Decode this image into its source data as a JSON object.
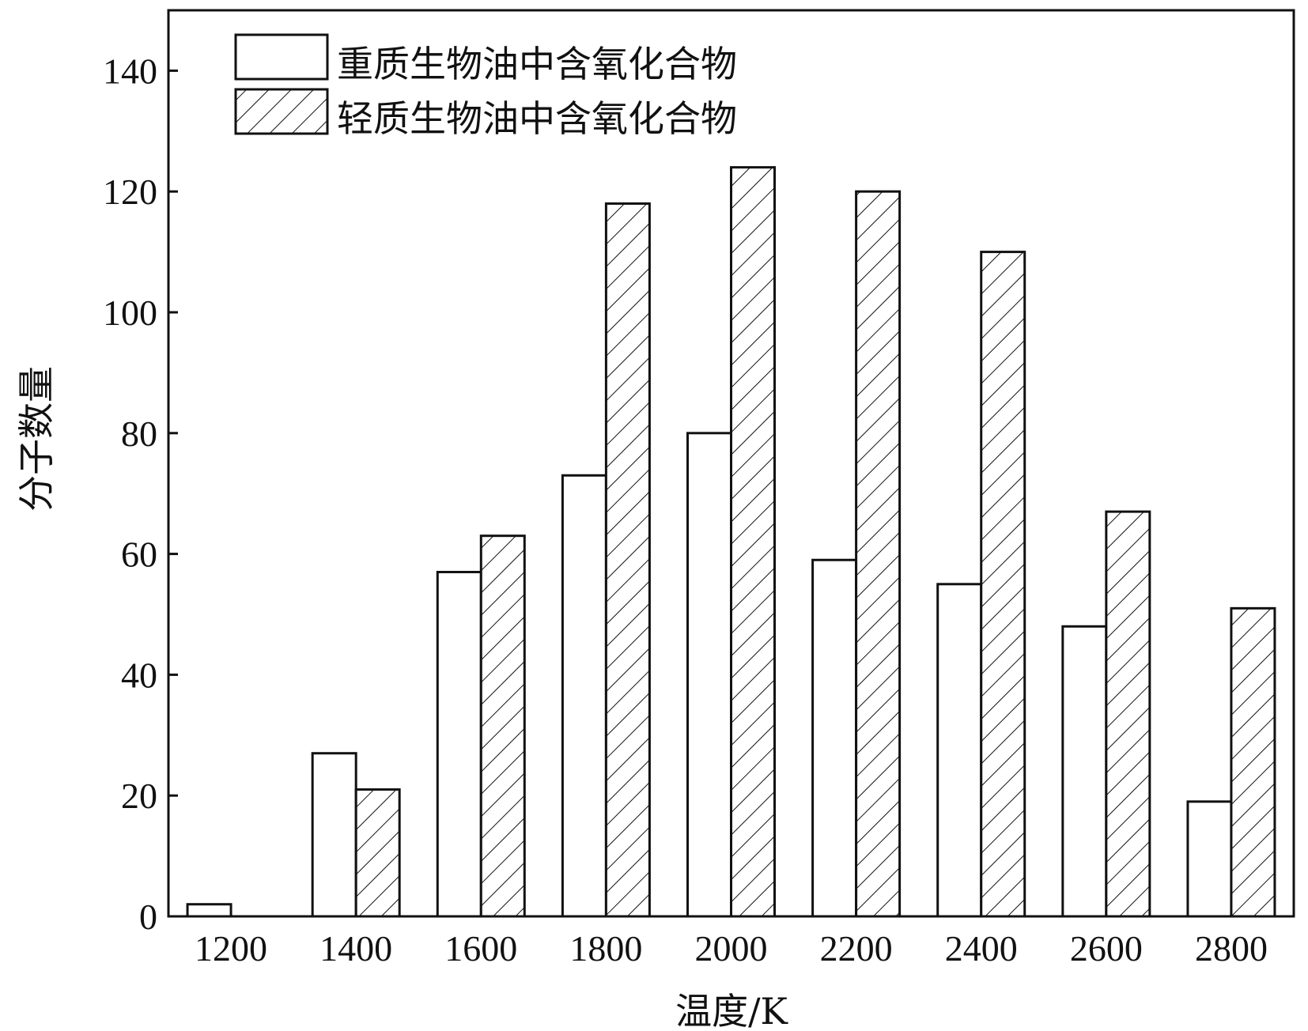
{
  "chart_data": {
    "type": "bar",
    "categories": [
      "1200",
      "1400",
      "1600",
      "1800",
      "2000",
      "2200",
      "2400",
      "2600",
      "2800"
    ],
    "series": [
      {
        "name": "重质生物油中含氧化合物",
        "fill": "plain",
        "values": [
          2,
          27,
          57,
          73,
          80,
          59,
          55,
          48,
          19
        ]
      },
      {
        "name": "轻质生物油中含氧化合物",
        "fill": "hatched",
        "values": [
          0,
          21,
          63,
          118,
          124,
          120,
          110,
          67,
          51
        ]
      }
    ],
    "xlabel": "温度/K",
    "ylabel": "分子数量",
    "ylim": [
      0,
      150
    ],
    "yticks": [
      0,
      20,
      40,
      60,
      80,
      100,
      120,
      140
    ],
    "grid": false,
    "legend_position": "top-left",
    "colors": {
      "stroke": "#111111",
      "background": "#ffffff"
    }
  }
}
